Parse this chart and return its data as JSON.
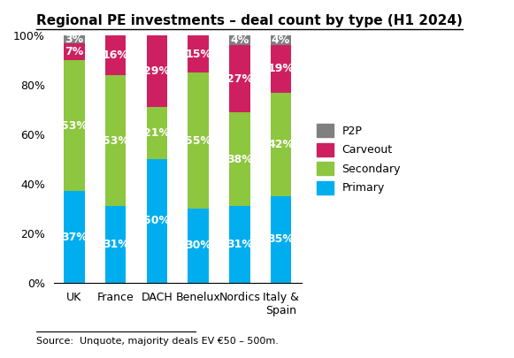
{
  "title": "Regional PE investments – deal count by type (H1 2024)",
  "categories": [
    "UK",
    "France",
    "DACH",
    "Benelux",
    "Nordics",
    "Italy &\nSpain"
  ],
  "series": {
    "Primary": [
      37,
      31,
      50,
      30,
      31,
      35
    ],
    "Secondary": [
      53,
      53,
      21,
      55,
      38,
      42
    ],
    "Carveout": [
      7,
      16,
      29,
      15,
      27,
      19
    ],
    "P2P": [
      3,
      0,
      0,
      0,
      4,
      4
    ]
  },
  "colors": {
    "Primary": "#00AEEF",
    "Secondary": "#8DC63F",
    "Carveout": "#CE2060",
    "P2P": "#808080"
  },
  "source_text": "Source:  Unquote, majority deals EV €50 – 500m.",
  "legend_order": [
    "P2P",
    "Carveout",
    "Secondary",
    "Primary"
  ],
  "title_fontsize": 11,
  "label_fontsize": 9,
  "source_fontsize": 8,
  "bar_width": 0.5
}
